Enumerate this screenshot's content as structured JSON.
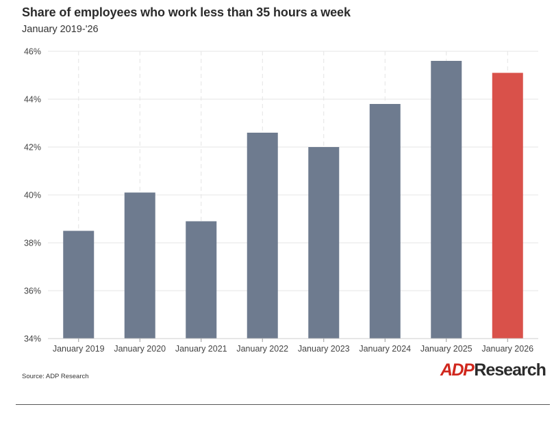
{
  "header": {
    "title": "Share of employees who work less than 35 hours a week",
    "subtitle": "January 2019-'26"
  },
  "footer": {
    "source": "Source: ADP Research",
    "logo_mark": "ADP",
    "logo_text": "Research"
  },
  "colors": {
    "bar": "#6e7b8f",
    "highlight": "#d9514a",
    "grid": "#e6e6e6"
  },
  "chart_data": {
    "type": "bar",
    "title": "Share of employees who work less than 35 hours a week",
    "subtitle": "January 2019-'26",
    "xlabel": "",
    "ylabel": "",
    "categories": [
      "January 2019",
      "January 2020",
      "January 2021",
      "January 2022",
      "January 2023",
      "January 2024",
      "January 2025",
      "January 2026"
    ],
    "values": [
      38.5,
      40.1,
      38.9,
      42.6,
      42.0,
      43.8,
      45.6,
      45.1
    ],
    "highlight_index": 7,
    "ylim": [
      34,
      46
    ],
    "yticks": [
      34,
      36,
      38,
      40,
      42,
      44,
      46
    ],
    "ytick_labels": [
      "34%",
      "36%",
      "38%",
      "40%",
      "42%",
      "44%",
      "46%"
    ],
    "grid": true,
    "legend": "none"
  }
}
